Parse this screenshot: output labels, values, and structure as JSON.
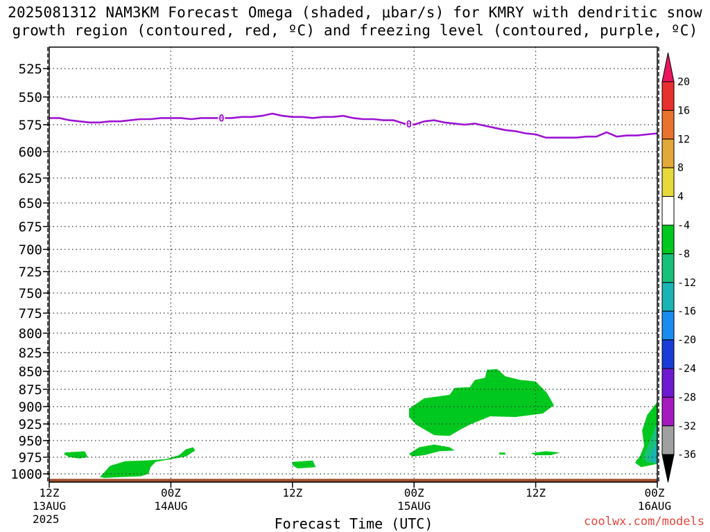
{
  "title": {
    "line1": "2025081312 NAM3KM Forecast Omega (shaded, μbar/s) for KMRY with dendritic snow",
    "line2": "growth region (contoured, red, ºC) and freezing level (contoured, purple, ºC)"
  },
  "credit": "coolwx.com/models",
  "chart_data": {
    "type": "heatmap",
    "station": "KMRY",
    "xlabel": "Forecast Time (UTC)",
    "ylabel": "",
    "x_range_hours": [
      0,
      60
    ],
    "y_range_hpa": [
      1010,
      505
    ],
    "y_ticks": [
      525,
      550,
      575,
      600,
      625,
      650,
      675,
      700,
      725,
      750,
      775,
      800,
      825,
      850,
      875,
      900,
      925,
      950,
      975,
      1000
    ],
    "x_ticks": [
      {
        "hour": 0,
        "line1": "12Z",
        "line2": "13AUG",
        "line3": "2025"
      },
      {
        "hour": 12,
        "line1": "00Z",
        "line2": "14AUG",
        "line3": ""
      },
      {
        "hour": 24,
        "line1": "12Z",
        "line2": "",
        "line3": ""
      },
      {
        "hour": 36,
        "line1": "00Z",
        "line2": "15AUG",
        "line3": ""
      },
      {
        "hour": 48,
        "line1": "12Z",
        "line2": "",
        "line3": ""
      },
      {
        "hour": 60,
        "line1": "00Z",
        "line2": "16AUG",
        "line3": ""
      }
    ],
    "grid": true,
    "colorbar": {
      "placement": "right",
      "labels": [
        "20",
        "16",
        "12",
        "8",
        "4",
        "-4",
        "-8",
        "-12",
        "-16",
        "-20",
        "-24",
        "-28",
        "-32",
        "-36"
      ],
      "colors": [
        "#e8175d",
        "#e8302e",
        "#e8722e",
        "#e2a83a",
        "#e6d93b",
        "#ffffff",
        "#00c81e",
        "#18c07a",
        "#1ab4b4",
        "#1a8cf0",
        "#1a3cd6",
        "#6e1ad0",
        "#a51abf",
        "#a0a0a0",
        "#000000"
      ]
    },
    "freezing_level": {
      "label": "0",
      "label_hours": [
        17.0,
        35.5
      ],
      "color": "#9d12d2",
      "points": [
        [
          0,
          569
        ],
        [
          1,
          569
        ],
        [
          2,
          571
        ],
        [
          3,
          572
        ],
        [
          4,
          573
        ],
        [
          5,
          573
        ],
        [
          6,
          572
        ],
        [
          7,
          572
        ],
        [
          8,
          571
        ],
        [
          9,
          570
        ],
        [
          10,
          570
        ],
        [
          11,
          569
        ],
        [
          12,
          569
        ],
        [
          13,
          569
        ],
        [
          14,
          570
        ],
        [
          15,
          569
        ],
        [
          16,
          569
        ],
        [
          17,
          569
        ],
        [
          18,
          569
        ],
        [
          19,
          568
        ],
        [
          20,
          568
        ],
        [
          21,
          567
        ],
        [
          22,
          565
        ],
        [
          23,
          567
        ],
        [
          24,
          568
        ],
        [
          25,
          568
        ],
        [
          26,
          569
        ],
        [
          27,
          568
        ],
        [
          28,
          568
        ],
        [
          29,
          567
        ],
        [
          30,
          569
        ],
        [
          31,
          570
        ],
        [
          32,
          570
        ],
        [
          33,
          571
        ],
        [
          34,
          571
        ],
        [
          35,
          574
        ],
        [
          36,
          575
        ],
        [
          37,
          572
        ],
        [
          38,
          571
        ],
        [
          39,
          573
        ],
        [
          40,
          574
        ],
        [
          41,
          575
        ],
        [
          42,
          574
        ],
        [
          43,
          576
        ],
        [
          44,
          578
        ],
        [
          45,
          580
        ],
        [
          46,
          581
        ],
        [
          47,
          583
        ],
        [
          48,
          584
        ],
        [
          49,
          587
        ],
        [
          50,
          587
        ],
        [
          51,
          587
        ],
        [
          52,
          587
        ],
        [
          53,
          586
        ],
        [
          54,
          586
        ],
        [
          55,
          582
        ],
        [
          56,
          586
        ],
        [
          57,
          585
        ],
        [
          58,
          585
        ],
        [
          59,
          584
        ],
        [
          60,
          583
        ]
      ]
    },
    "omega_shaded": [
      {
        "level": "-8",
        "color": "#00c81e",
        "points": [
          [
            1.5,
            968
          ],
          [
            3.5,
            966
          ],
          [
            3.8,
            975
          ],
          [
            3.0,
            977
          ],
          [
            2.0,
            975
          ],
          [
            1.5,
            971
          ]
        ]
      },
      {
        "level": "-8",
        "color": "#00c81e",
        "points": [
          [
            5.0,
            1004
          ],
          [
            6.0,
            988
          ],
          [
            7.5,
            981
          ],
          [
            9.5,
            980
          ],
          [
            11.5,
            978
          ],
          [
            12.8,
            972
          ],
          [
            13.5,
            963
          ],
          [
            14.2,
            960
          ],
          [
            14.4,
            965
          ],
          [
            13.5,
            974
          ],
          [
            12.0,
            978
          ],
          [
            10.5,
            982
          ],
          [
            10.0,
            990
          ],
          [
            9.8,
            1000
          ],
          [
            9.0,
            1003
          ],
          [
            7.0,
            1004
          ],
          [
            5.5,
            1005
          ]
        ]
      },
      {
        "level": "-8",
        "color": "#00c81e",
        "points": [
          [
            24.0,
            982
          ],
          [
            26.0,
            980
          ],
          [
            26.3,
            990
          ],
          [
            24.5,
            992
          ],
          [
            24.0,
            987
          ]
        ]
      },
      {
        "level": "-8",
        "color": "#00c81e",
        "points": [
          [
            35.5,
            970
          ],
          [
            36.5,
            960
          ],
          [
            38.0,
            956
          ],
          [
            39.5,
            960
          ],
          [
            40.0,
            965
          ],
          [
            38.5,
            966
          ],
          [
            37.0,
            972
          ],
          [
            35.8,
            974
          ]
        ]
      },
      {
        "level": "-8",
        "color": "#00c81e",
        "points": [
          [
            35.5,
            903
          ],
          [
            37.0,
            888
          ],
          [
            39.5,
            883
          ],
          [
            40.0,
            873
          ],
          [
            41.5,
            872
          ],
          [
            42.0,
            862
          ],
          [
            43.0,
            859
          ],
          [
            43.2,
            848
          ],
          [
            44.2,
            847
          ],
          [
            45.0,
            857
          ],
          [
            46.5,
            862
          ],
          [
            48.0,
            864
          ],
          [
            49.1,
            880
          ],
          [
            49.8,
            898
          ],
          [
            48.7,
            910
          ],
          [
            46.0,
            915
          ],
          [
            43.5,
            914
          ],
          [
            41.5,
            926
          ],
          [
            40.5,
            934
          ],
          [
            39.5,
            943
          ],
          [
            38.0,
            942
          ],
          [
            36.2,
            926
          ],
          [
            35.5,
            915
          ]
        ]
      },
      {
        "level": "-8",
        "color": "#00c81e",
        "points": [
          [
            44.4,
            968
          ],
          [
            45.0,
            968
          ],
          [
            45.0,
            971
          ],
          [
            44.4,
            971
          ]
        ]
      },
      {
        "level": "-8",
        "color": "#00c81e",
        "points": [
          [
            47.5,
            969
          ],
          [
            49.0,
            966
          ],
          [
            50.4,
            968
          ],
          [
            49.5,
            972
          ],
          [
            48.0,
            972
          ]
        ]
      },
      {
        "level": "-8",
        "color": "#00c81e",
        "points": [
          [
            57.8,
            983
          ],
          [
            58.3,
            973
          ],
          [
            58.7,
            958
          ],
          [
            58.5,
            935
          ],
          [
            59.0,
            912
          ],
          [
            59.8,
            897
          ],
          [
            60.0,
            893
          ],
          [
            60.0,
            985
          ],
          [
            58.4,
            990
          ]
        ]
      },
      {
        "level": "-12",
        "color": "#18c07a",
        "points": [
          [
            58.6,
            976
          ],
          [
            60.0,
            922
          ],
          [
            60.0,
            985
          ],
          [
            59.0,
            983
          ]
        ]
      },
      {
        "level": "-16",
        "color": "#1ab4b4",
        "points": [
          [
            59.2,
            978
          ],
          [
            60.0,
            948
          ],
          [
            60.0,
            984
          ]
        ]
      }
    ],
    "surface": {
      "color": "#a0502d",
      "points": [
        [
          0,
          1006
        ],
        [
          60,
          1006
        ],
        [
          60,
          1011
        ],
        [
          0,
          1011
        ]
      ]
    }
  }
}
